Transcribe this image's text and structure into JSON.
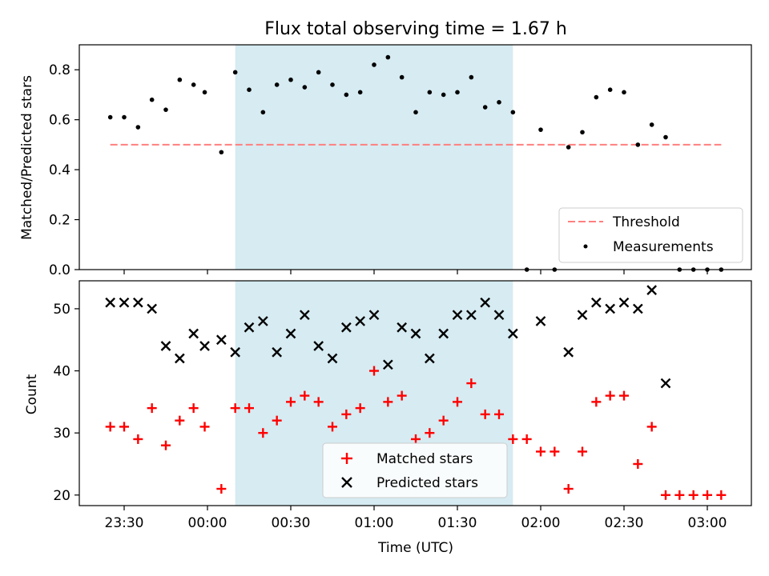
{
  "title": "Flux total observing time = 1.67 h",
  "colors": {
    "threshold": "#ff7f7f",
    "shade": "#add8e6",
    "matched": "#ff0000",
    "predicted": "#000000",
    "measurement": "#000000"
  },
  "x_ticks": [
    "23:30",
    "00:00",
    "00:30",
    "01:00",
    "01:30",
    "02:00",
    "02:30",
    "03:00"
  ],
  "xlabel": "Time (UTC)",
  "chart_data": [
    {
      "type": "scatter",
      "panel": "top",
      "ylabel": "Matched/Predicted stars",
      "ylim": [
        0,
        0.9
      ],
      "y_ticks": [
        "0.0",
        "0.2",
        "0.4",
        "0.6",
        "0.8"
      ],
      "shaded_interval": [
        "00:10",
        "01:50"
      ],
      "legend": [
        "Threshold",
        "Measurements"
      ],
      "legend_position": "lower right",
      "threshold": {
        "name": "Threshold",
        "y": 0.5,
        "x_start": "23:25",
        "x_end": "03:05"
      },
      "measurements": {
        "name": "Measurements",
        "x": [
          "23:25",
          "23:30",
          "23:35",
          "23:40",
          "23:45",
          "23:50",
          "23:55",
          "23:59",
          "00:05",
          "00:10",
          "00:15",
          "00:20",
          "00:25",
          "00:30",
          "00:35",
          "00:40",
          "00:45",
          "00:50",
          "00:55",
          "01:00",
          "01:05",
          "01:10",
          "01:15",
          "01:20",
          "01:25",
          "01:30",
          "01:35",
          "01:40",
          "01:45",
          "01:50",
          "01:55",
          "02:00",
          "02:05",
          "02:10",
          "02:15",
          "02:20",
          "02:25",
          "02:30",
          "02:35",
          "02:40",
          "02:45",
          "02:50",
          "02:55",
          "03:00",
          "03:05"
        ],
        "y": [
          0.61,
          0.61,
          0.57,
          0.68,
          0.64,
          0.76,
          0.74,
          0.71,
          0.47,
          0.79,
          0.72,
          0.63,
          0.74,
          0.76,
          0.73,
          0.79,
          0.74,
          0.7,
          0.71,
          0.82,
          0.85,
          0.77,
          0.63,
          0.71,
          0.7,
          0.71,
          0.77,
          0.65,
          0.67,
          0.63,
          0.0,
          0.56,
          0.0,
          0.49,
          0.55,
          0.69,
          0.72,
          0.71,
          0.5,
          0.58,
          0.53,
          0.0,
          0.0,
          0.0,
          0.0
        ]
      }
    },
    {
      "type": "scatter",
      "panel": "bottom",
      "ylabel": "Count",
      "ylim": [
        18.3,
        54.5
      ],
      "y_ticks": [
        "20",
        "30",
        "40",
        "50"
      ],
      "shaded_interval": [
        "00:10",
        "01:50"
      ],
      "legend": [
        "Matched stars",
        "Predicted stars"
      ],
      "legend_position": "lower center",
      "series": [
        {
          "name": "Matched stars",
          "marker": "+",
          "x": [
            "23:25",
            "23:30",
            "23:35",
            "23:40",
            "23:45",
            "23:50",
            "23:55",
            "23:59",
            "00:05",
            "00:10",
            "00:15",
            "00:20",
            "00:25",
            "00:30",
            "00:35",
            "00:40",
            "00:45",
            "00:50",
            "00:55",
            "01:00",
            "01:05",
            "01:10",
            "01:15",
            "01:20",
            "01:25",
            "01:30",
            "01:35",
            "01:40",
            "01:45",
            "01:50",
            "01:55",
            "02:00",
            "02:05",
            "02:10",
            "02:15",
            "02:20",
            "02:25",
            "02:30",
            "02:35",
            "02:40",
            "02:45",
            "02:50",
            "02:55",
            "03:00",
            "03:05"
          ],
          "y": [
            31,
            31,
            29,
            34,
            28,
            32,
            34,
            31,
            21,
            34,
            34,
            30,
            32,
            35,
            36,
            35,
            31,
            33,
            34,
            40,
            35,
            36,
            29,
            30,
            32,
            35,
            38,
            33,
            33,
            29,
            29,
            27,
            27,
            21,
            27,
            35,
            36,
            36,
            25,
            31,
            20,
            20,
            20,
            20,
            20
          ]
        },
        {
          "name": "Predicted stars",
          "marker": "x",
          "x": [
            "23:25",
            "23:30",
            "23:35",
            "23:40",
            "23:45",
            "23:50",
            "23:55",
            "23:59",
            "00:05",
            "00:10",
            "00:15",
            "00:20",
            "00:25",
            "00:30",
            "00:35",
            "00:40",
            "00:45",
            "00:50",
            "00:55",
            "01:00",
            "01:05",
            "01:10",
            "01:15",
            "01:20",
            "01:25",
            "01:30",
            "01:35",
            "01:40",
            "01:45",
            "01:50",
            "02:00",
            "02:10",
            "02:15",
            "02:20",
            "02:25",
            "02:30",
            "02:35",
            "02:40",
            "02:45"
          ],
          "y": [
            51,
            51,
            51,
            50,
            44,
            42,
            46,
            44,
            45,
            43,
            47,
            48,
            43,
            46,
            49,
            44,
            42,
            47,
            48,
            49,
            41,
            47,
            46,
            42,
            46,
            49,
            49,
            51,
            49,
            46,
            48,
            43,
            49,
            51,
            50,
            51,
            50,
            53,
            38
          ]
        }
      ]
    }
  ]
}
